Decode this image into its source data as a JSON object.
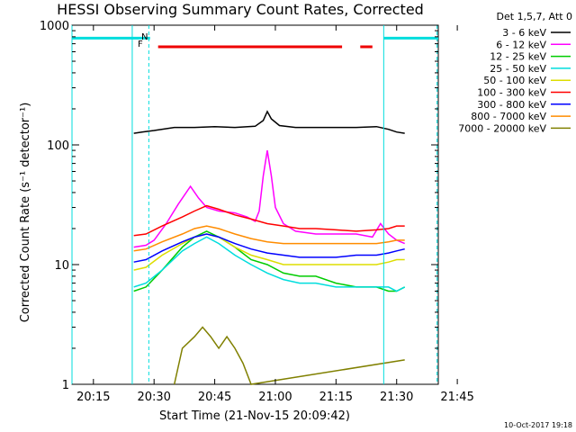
{
  "chart_data": {
    "type": "line",
    "title": "HESSI Observing Summary Count Rates, Corrected",
    "xlabel": "Start Time (21-Nov-15 20:09:42)",
    "ylabel": "Corrected Count Rate (s⁻¹ detector⁻¹)",
    "legend_title": "Det 1,5,7, Att 0",
    "x_ticks": [
      "20:15",
      "20:30",
      "20:45",
      "21:00",
      "21:15",
      "21:30",
      "21:45"
    ],
    "y_ticks": [
      "1",
      "10",
      "100",
      "1000"
    ],
    "x_range_min": [
      9.7,
      100.3
    ],
    "y_range": [
      1,
      1000
    ],
    "y_scale": "log",
    "footer_date": "10-Oct-2017 19:18",
    "flags": {
      "n_label": "N",
      "f_label": "F"
    },
    "series": [
      {
        "name": "3 - 6 keV",
        "color": "#000000",
        "points": [
          [
            25,
            125
          ],
          [
            27,
            128
          ],
          [
            30,
            132
          ],
          [
            35,
            140
          ],
          [
            40,
            140
          ],
          [
            45,
            142
          ],
          [
            50,
            140
          ],
          [
            55,
            143
          ],
          [
            57,
            160
          ],
          [
            58,
            190
          ],
          [
            59,
            165
          ],
          [
            61,
            145
          ],
          [
            65,
            140
          ],
          [
            70,
            140
          ],
          [
            75,
            140
          ],
          [
            80,
            140
          ],
          [
            85,
            142
          ],
          [
            88,
            135
          ],
          [
            90,
            128
          ],
          [
            92,
            125
          ]
        ]
      },
      {
        "name": "6 - 12 keV",
        "color": "#ff00ff",
        "points": [
          [
            25,
            14
          ],
          [
            28,
            14.5
          ],
          [
            30,
            16
          ],
          [
            33,
            22
          ],
          [
            36,
            32
          ],
          [
            39,
            45
          ],
          [
            41,
            36
          ],
          [
            43,
            30
          ],
          [
            46,
            28
          ],
          [
            50,
            27
          ],
          [
            53,
            25
          ],
          [
            55,
            23
          ],
          [
            56,
            28
          ],
          [
            57,
            55
          ],
          [
            58,
            90
          ],
          [
            59,
            55
          ],
          [
            60,
            30
          ],
          [
            62,
            22
          ],
          [
            65,
            19
          ],
          [
            70,
            18
          ],
          [
            75,
            18
          ],
          [
            80,
            18
          ],
          [
            84,
            17
          ],
          [
            86,
            22
          ],
          [
            88,
            18
          ],
          [
            90,
            16
          ],
          [
            92,
            15
          ]
        ]
      },
      {
        "name": "12 - 25 keV",
        "color": "#00cc00",
        "points": [
          [
            25,
            6
          ],
          [
            28,
            6.5
          ],
          [
            32,
            9
          ],
          [
            37,
            14
          ],
          [
            40,
            17
          ],
          [
            43,
            19
          ],
          [
            46,
            17
          ],
          [
            50,
            14
          ],
          [
            54,
            11
          ],
          [
            58,
            10
          ],
          [
            62,
            8.5
          ],
          [
            66,
            8
          ],
          [
            70,
            8
          ],
          [
            75,
            7
          ],
          [
            80,
            6.5
          ],
          [
            85,
            6.5
          ],
          [
            88,
            6
          ],
          [
            90,
            6
          ],
          [
            92,
            6.5
          ]
        ]
      },
      {
        "name": "25 - 50 keV",
        "color": "#00dddd",
        "points": [
          [
            25,
            6.5
          ],
          [
            28,
            7
          ],
          [
            32,
            9
          ],
          [
            37,
            13
          ],
          [
            40,
            15
          ],
          [
            43,
            17
          ],
          [
            46,
            15
          ],
          [
            50,
            12
          ],
          [
            54,
            10
          ],
          [
            58,
            8.5
          ],
          [
            62,
            7.5
          ],
          [
            66,
            7
          ],
          [
            70,
            7
          ],
          [
            75,
            6.5
          ],
          [
            80,
            6.5
          ],
          [
            85,
            6.5
          ],
          [
            88,
            6.5
          ],
          [
            90,
            6
          ],
          [
            92,
            6.5
          ]
        ]
      },
      {
        "name": "50 - 100 keV",
        "color": "#dddd00",
        "points": [
          [
            25,
            9
          ],
          [
            28,
            9.5
          ],
          [
            32,
            12
          ],
          [
            37,
            15
          ],
          [
            40,
            17
          ],
          [
            43,
            18
          ],
          [
            46,
            17
          ],
          [
            50,
            14
          ],
          [
            54,
            12
          ],
          [
            58,
            11
          ],
          [
            62,
            10
          ],
          [
            66,
            10
          ],
          [
            70,
            10
          ],
          [
            75,
            10
          ],
          [
            80,
            10
          ],
          [
            85,
            10
          ],
          [
            88,
            10.5
          ],
          [
            90,
            11
          ],
          [
            92,
            11
          ]
        ]
      },
      {
        "name": "100 - 300 keV",
        "color": "#ff0000",
        "points": [
          [
            25,
            17.5
          ],
          [
            28,
            18
          ],
          [
            32,
            21
          ],
          [
            37,
            25
          ],
          [
            40,
            28
          ],
          [
            43,
            31
          ],
          [
            46,
            29
          ],
          [
            50,
            26
          ],
          [
            54,
            24
          ],
          [
            58,
            22
          ],
          [
            62,
            21
          ],
          [
            66,
            20
          ],
          [
            70,
            20
          ],
          [
            75,
            19.5
          ],
          [
            80,
            19
          ],
          [
            85,
            19.5
          ],
          [
            88,
            20
          ],
          [
            90,
            21
          ],
          [
            92,
            21
          ]
        ]
      },
      {
        "name": "300 - 800 keV",
        "color": "#0000ff",
        "points": [
          [
            25,
            10.5
          ],
          [
            28,
            11
          ],
          [
            32,
            13
          ],
          [
            37,
            15.5
          ],
          [
            40,
            17
          ],
          [
            43,
            18
          ],
          [
            46,
            17
          ],
          [
            50,
            15
          ],
          [
            54,
            13.5
          ],
          [
            58,
            12.5
          ],
          [
            62,
            12
          ],
          [
            66,
            11.5
          ],
          [
            70,
            11.5
          ],
          [
            75,
            11.5
          ],
          [
            80,
            12
          ],
          [
            85,
            12
          ],
          [
            88,
            12.5
          ],
          [
            90,
            13
          ],
          [
            92,
            13.5
          ]
        ]
      },
      {
        "name": "800 - 7000 keV",
        "color": "#ff8c00",
        "points": [
          [
            25,
            13
          ],
          [
            28,
            13.5
          ],
          [
            32,
            15.5
          ],
          [
            37,
            18
          ],
          [
            40,
            20
          ],
          [
            43,
            21
          ],
          [
            46,
            20
          ],
          [
            50,
            18
          ],
          [
            54,
            16.5
          ],
          [
            58,
            15.5
          ],
          [
            62,
            15
          ],
          [
            66,
            15
          ],
          [
            70,
            15
          ],
          [
            75,
            15
          ],
          [
            80,
            15
          ],
          [
            85,
            15
          ],
          [
            88,
            15.5
          ],
          [
            90,
            16
          ],
          [
            92,
            16
          ]
        ]
      },
      {
        "name": "7000 - 20000 keV",
        "color": "#808000",
        "points": [
          [
            35,
            1
          ],
          [
            37,
            2
          ],
          [
            40,
            2.5
          ],
          [
            42,
            3
          ],
          [
            44,
            2.5
          ],
          [
            46,
            2
          ],
          [
            48,
            2.5
          ],
          [
            50,
            2
          ],
          [
            52,
            1.5
          ],
          [
            54,
            1
          ],
          [
            92,
            1.6
          ]
        ]
      }
    ],
    "attenuator_bars": [
      {
        "color": "#00dddd",
        "x0": 9.7,
        "x1": 29.0,
        "value": 780
      },
      {
        "color": "#00dddd",
        "x0": 86.8,
        "x1": 100.3,
        "value": 780
      }
    ],
    "flare_bars": [
      {
        "color": "#ee0000",
        "x0": 31.0,
        "x1": 76.5,
        "value": 660
      },
      {
        "color": "#ee0000",
        "x0": 81.0,
        "x1": 84.0,
        "value": 660
      }
    ],
    "vlines": [
      {
        "x": 9.7,
        "style": "solid"
      },
      {
        "x": 24.6,
        "style": "solid"
      },
      {
        "x": 28.7,
        "style": "dashed"
      },
      {
        "x": 86.8,
        "style": "solid"
      },
      {
        "x": 100.0,
        "style": "dashed"
      }
    ]
  }
}
